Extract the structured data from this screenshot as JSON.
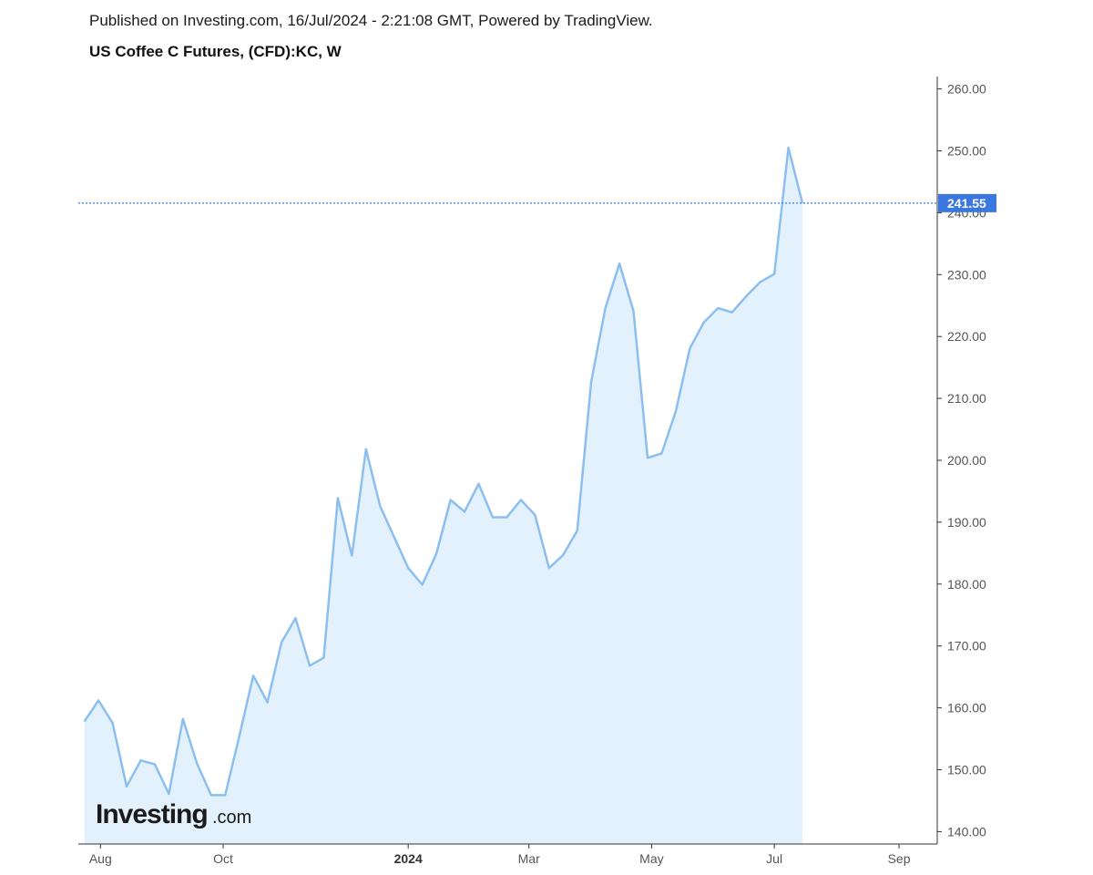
{
  "header": {
    "published": "Published on Investing.com, 16/Jul/2024 - 2:21:08 GMT, Powered by TradingView.",
    "title": "US Coffee C Futures, (CFD):KC, W"
  },
  "logo": {
    "main": "Investing",
    "suffix": ".com"
  },
  "colors": {
    "line": "#8cbfee",
    "fill": "#e2f1fb",
    "last_price_bg": "#3a78e0",
    "axis": "#333333"
  },
  "chart_data": {
    "type": "area",
    "title": "US Coffee C Futures, (CFD):KC, W",
    "xlabel": "",
    "ylabel": "",
    "ylim": [
      138,
      262
    ],
    "y_ticks": [
      "260.00",
      "250.00",
      "240.00",
      "230.00",
      "220.00",
      "210.00",
      "200.00",
      "190.00",
      "180.00",
      "170.00",
      "160.00",
      "150.00",
      "140.00"
    ],
    "x_ticks": [
      {
        "label": "Aug",
        "date": "2023-08-01",
        "bold": false
      },
      {
        "label": "Oct",
        "date": "2023-10-01",
        "bold": false
      },
      {
        "label": "2024",
        "date": "2024-01-01",
        "bold": true
      },
      {
        "label": "Mar",
        "date": "2024-03-01",
        "bold": false
      },
      {
        "label": "May",
        "date": "2024-05-01",
        "bold": false
      },
      {
        "label": "Jul",
        "date": "2024-07-01",
        "bold": false
      },
      {
        "label": "Sep",
        "date": "2024-09-01",
        "bold": false
      }
    ],
    "x_range": [
      "2023-07-21",
      "2024-09-20"
    ],
    "last_price": {
      "value": 241.55,
      "label": "241.55"
    },
    "series": [
      {
        "x": [
          "2023-07-24",
          "2023-07-31",
          "2023-08-07",
          "2023-08-14",
          "2023-08-21",
          "2023-08-28",
          "2023-09-04",
          "2023-09-11",
          "2023-09-18",
          "2023-09-25",
          "2023-10-02",
          "2023-10-09",
          "2023-10-16",
          "2023-10-23",
          "2023-10-30",
          "2023-11-06",
          "2023-11-13",
          "2023-11-20",
          "2023-11-27",
          "2023-12-04",
          "2023-12-11",
          "2023-12-18",
          "2023-12-25",
          "2024-01-01",
          "2024-01-08",
          "2024-01-15",
          "2024-01-22",
          "2024-01-29",
          "2024-02-05",
          "2024-02-12",
          "2024-02-19",
          "2024-02-26",
          "2024-03-04",
          "2024-03-11",
          "2024-03-18",
          "2024-03-25",
          "2024-04-01",
          "2024-04-08",
          "2024-04-15",
          "2024-04-22",
          "2024-04-29",
          "2024-05-06",
          "2024-05-13",
          "2024-05-20",
          "2024-05-27",
          "2024-06-03",
          "2024-06-10",
          "2024-06-17",
          "2024-06-24",
          "2024-07-01",
          "2024-07-08",
          "2024-07-15"
        ],
        "values": [
          157.8,
          161.2,
          157.6,
          147.3,
          151.5,
          150.9,
          146.1,
          158.2,
          151.0,
          145.9,
          145.9,
          155.4,
          165.2,
          160.9,
          170.6,
          174.5,
          166.8,
          168.1,
          193.9,
          184.6,
          201.8,
          192.6,
          187.6,
          182.6,
          179.9,
          184.9,
          193.6,
          191.7,
          196.2,
          190.8,
          190.8,
          193.6,
          191.2,
          182.6,
          184.7,
          188.6,
          212.7,
          224.6,
          231.8,
          224.1,
          200.4,
          201.1,
          207.9,
          218.1,
          222.3,
          224.6,
          223.9,
          226.5,
          228.8,
          230.1,
          250.5,
          241.55
        ]
      }
    ]
  }
}
